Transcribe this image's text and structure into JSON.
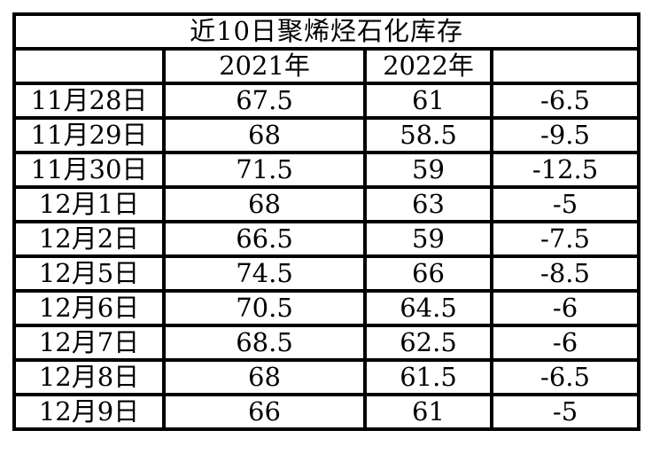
{
  "title": "近10日聚烯烃石化库存",
  "colors": {
    "title_bg": "#c00000",
    "title_text": "#ffffff",
    "border": "#000000",
    "cell_bg": "#ffffff",
    "cell_text": "#000000"
  },
  "table": {
    "headers": {
      "date": "",
      "y2021": "2021年",
      "y2022": "2022年",
      "diff": ""
    },
    "rows": [
      {
        "date": "11月28日",
        "y2021": "67.5",
        "y2022": "61",
        "diff": "-6.5"
      },
      {
        "date": "11月29日",
        "y2021": "68",
        "y2022": "58.5",
        "diff": "-9.5"
      },
      {
        "date": "11月30日",
        "y2021": "71.5",
        "y2022": "59",
        "diff": "-12.5"
      },
      {
        "date": "12月1日",
        "y2021": "68",
        "y2022": "63",
        "diff": "-5"
      },
      {
        "date": "12月2日",
        "y2021": "66.5",
        "y2022": "59",
        "diff": "-7.5"
      },
      {
        "date": "12月5日",
        "y2021": "74.5",
        "y2022": "66",
        "diff": "-8.5"
      },
      {
        "date": "12月6日",
        "y2021": "70.5",
        "y2022": "64.5",
        "diff": "-6"
      },
      {
        "date": "12月7日",
        "y2021": "68.5",
        "y2022": "62.5",
        "diff": "-6"
      },
      {
        "date": "12月8日",
        "y2021": "68",
        "y2022": "61.5",
        "diff": "-6.5"
      },
      {
        "date": "12月9日",
        "y2021": "66",
        "y2022": "61",
        "diff": "-5"
      }
    ]
  },
  "chart_data": {
    "type": "table",
    "title": "近10日聚烯烃石化库存",
    "categories": [
      "11月28日",
      "11月29日",
      "11月30日",
      "12月1日",
      "12月2日",
      "12月5日",
      "12月6日",
      "12月7日",
      "12月8日",
      "12月9日"
    ],
    "series": [
      {
        "name": "2021年",
        "values": [
          67.5,
          68,
          71.5,
          68,
          66.5,
          74.5,
          70.5,
          68.5,
          68,
          66
        ]
      },
      {
        "name": "2022年",
        "values": [
          61,
          58.5,
          59,
          63,
          59,
          66,
          64.5,
          62.5,
          61.5,
          61
        ]
      },
      {
        "name": "",
        "values": [
          -6.5,
          -9.5,
          -12.5,
          -5,
          -7.5,
          -8.5,
          -6,
          -6,
          -6.5,
          -5
        ]
      }
    ],
    "layout": {
      "grid": "thick-black-borders",
      "title_style": "white-on-red-banner"
    }
  }
}
